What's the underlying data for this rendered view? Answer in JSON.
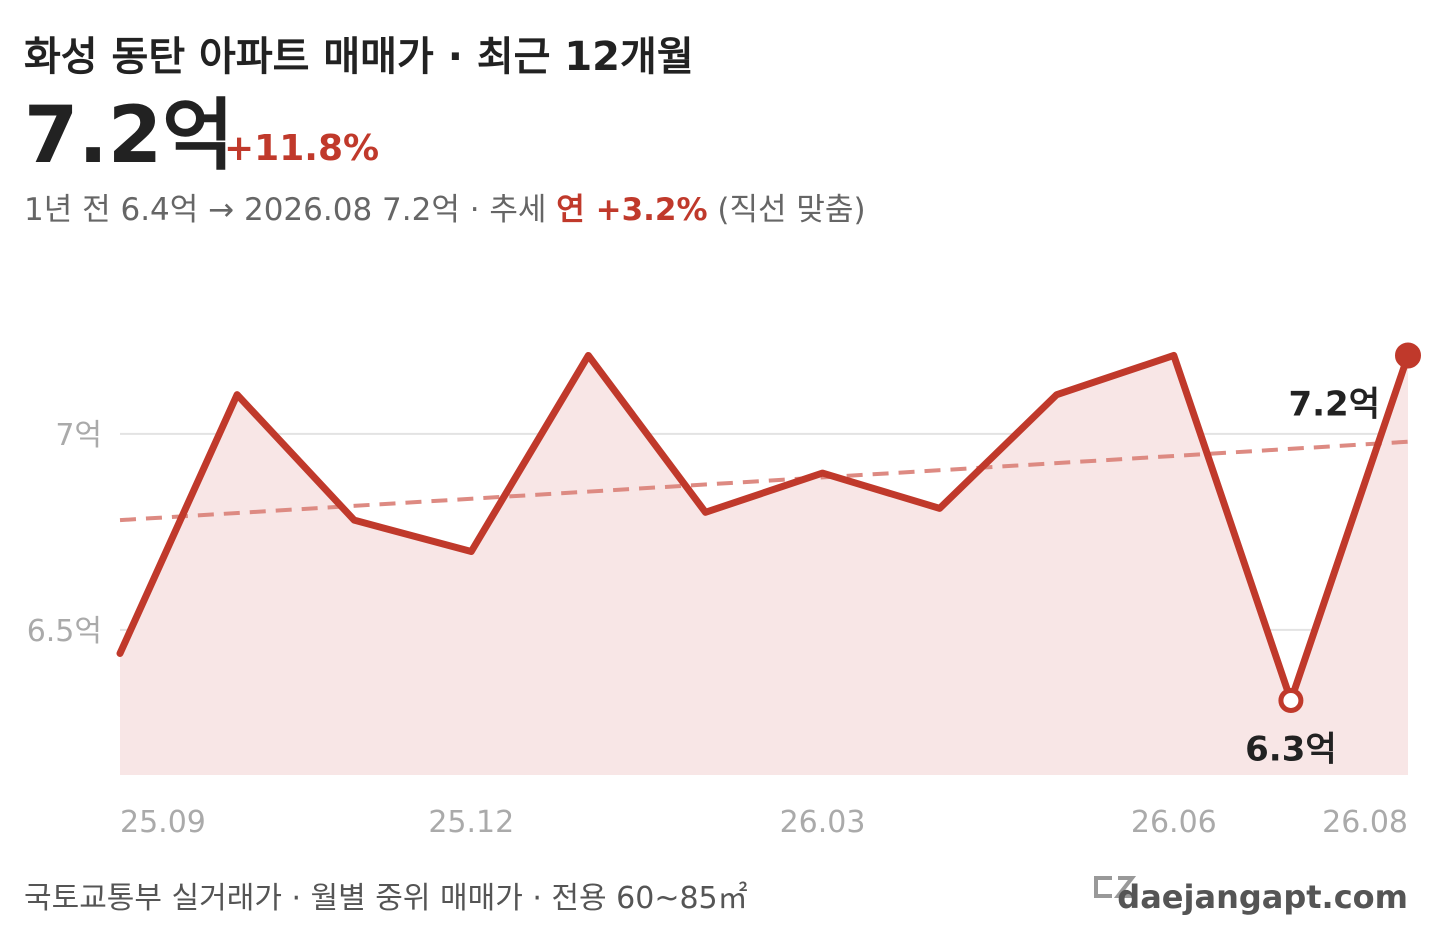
{
  "chart_data": {
    "type": "line",
    "title": "화성 동탄 아파트 매매가 · 최근 12개월",
    "headline_value": "7.2억",
    "headline_change": "+11.8%",
    "subtitle": {
      "before": "1년 전 6.4억 → 2026.08 7.2억 · 추세 ",
      "highlight": "연 +3.2%",
      "after": " (직선 맞춤)"
    },
    "categories": [
      "25.09",
      null,
      null,
      "25.12",
      null,
      null,
      "26.03",
      null,
      null,
      "26.06",
      null,
      "26.08"
    ],
    "series": [
      {
        "name": "매매가",
        "color": "#c0392b",
        "values": [
          6.44,
          7.1,
          6.78,
          6.7,
          7.2,
          6.8,
          6.9,
          6.81,
          7.1,
          7.2,
          6.32,
          7.2
        ],
        "value_labels": [
          null,
          null,
          null,
          null,
          null,
          null,
          null,
          null,
          null,
          null,
          "6.3억",
          "7.2억"
        ]
      }
    ],
    "area_color": "#f8e6e6",
    "trend": {
      "start": 6.78,
      "end": 6.98,
      "color": "#dd8a82"
    },
    "ylim": [
      6.13,
      7.27
    ],
    "yticks": [
      {
        "value": 6.5,
        "label": "6.5억"
      },
      {
        "value": 7,
        "label": "7억"
      }
    ],
    "grid": true,
    "source": "국토교통부 실거래가 · 월별 중위 매매가 · 전용 60~85㎡",
    "brand": "daejangapt.com"
  }
}
